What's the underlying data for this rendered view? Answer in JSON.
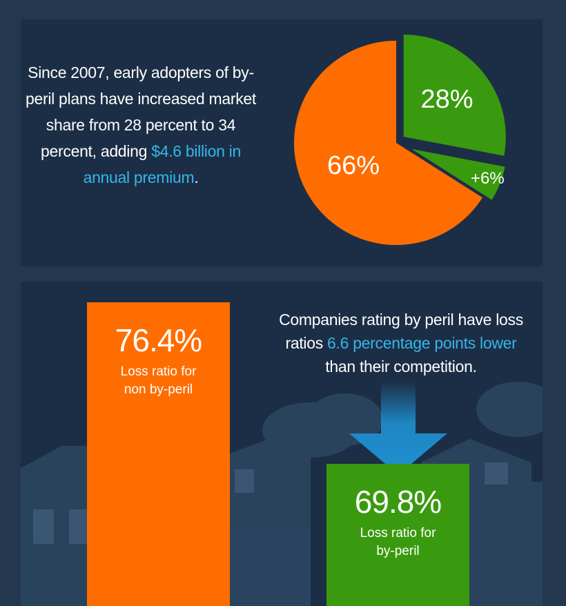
{
  "intro": {
    "text": "Since 2007, early adopters of by-peril plans have increased market share from 28 percent to 34 percent, adding",
    "highlight": "$4.6 billion in annual premium",
    "suffix": "."
  },
  "statement": {
    "prefix": "Companies rating by peril have loss ratios",
    "highlight": "6.6 percentage points lower",
    "suffix": "than their competition."
  },
  "colors": {
    "orange": "#ff6d00",
    "green": "#3a9a0f",
    "accent_blue": "#35b6ea",
    "arrow_blue": "#1f8fd0"
  },
  "chart_data": [
    {
      "type": "pie",
      "slices": [
        {
          "label": "66%",
          "value": 66,
          "color": "#ff6d00",
          "exploded": false
        },
        {
          "label": "28%",
          "value": 28,
          "color": "#3a9a0f",
          "exploded": true
        },
        {
          "label": "+6%",
          "value": 6,
          "color": "#3a9a0f",
          "exploded": true
        }
      ]
    },
    {
      "type": "bar",
      "categories": [
        "non by-peril",
        "by-peril"
      ],
      "values": [
        76.4,
        69.8
      ],
      "value_labels": [
        "76.4%",
        "69.8%"
      ],
      "captions": [
        [
          "Loss ratio for",
          "non by-peril"
        ],
        [
          "Loss ratio for",
          "by-peril"
        ]
      ],
      "colors": [
        "#ff6d00",
        "#3a9a0f"
      ]
    }
  ]
}
